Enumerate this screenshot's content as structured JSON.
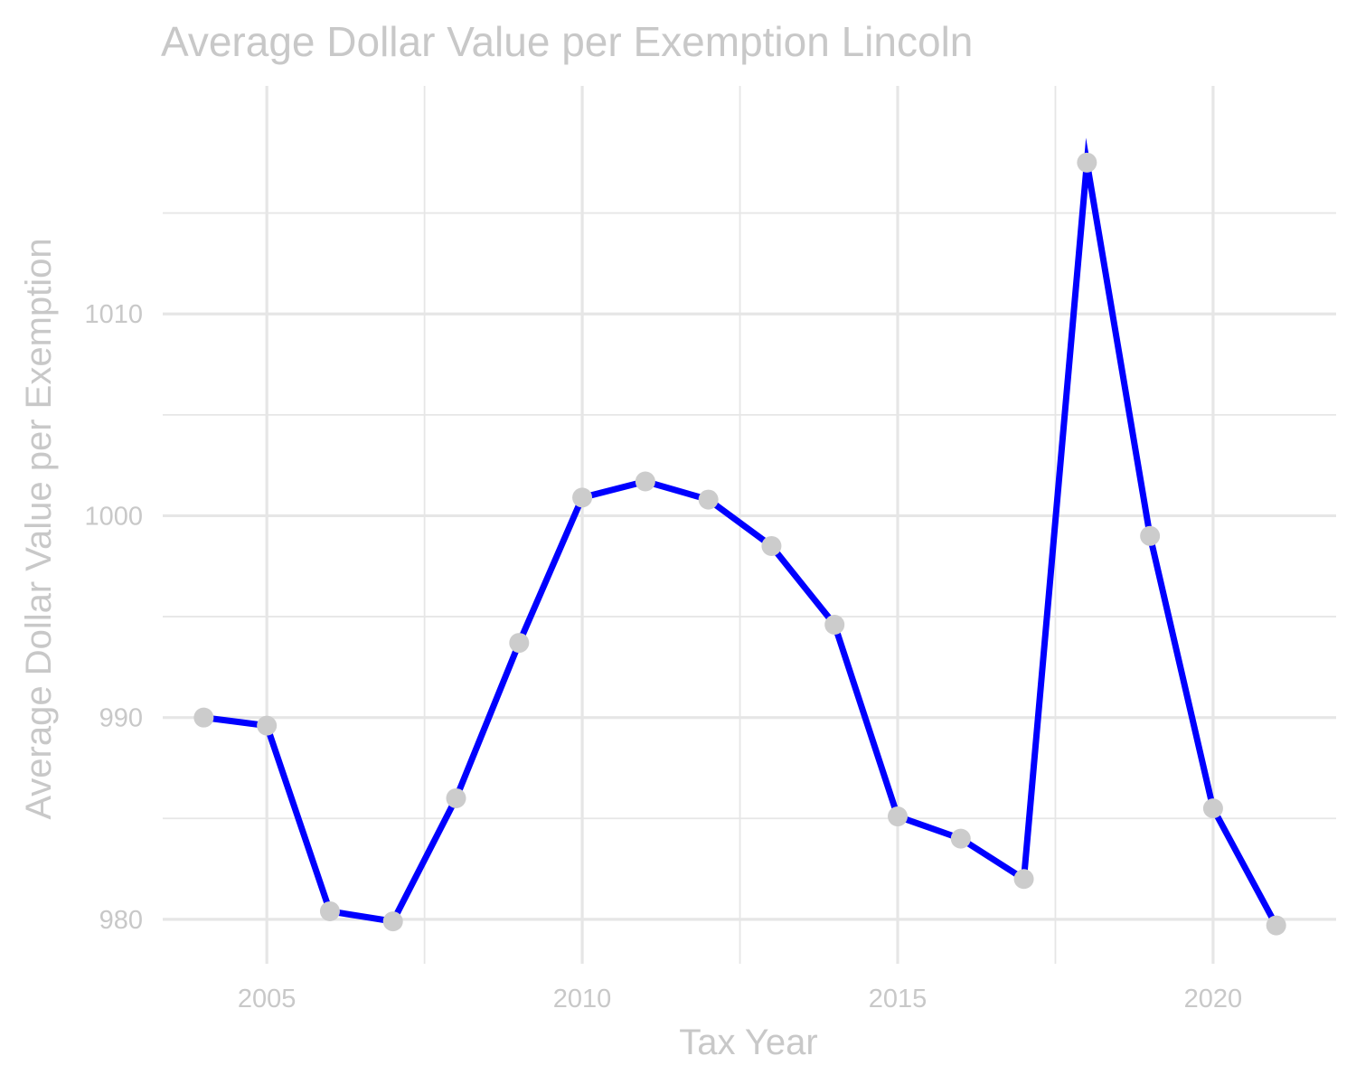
{
  "chart_data": {
    "type": "line",
    "title": "Average Dollar Value per Exemption Lincoln",
    "xlabel": "Tax Year",
    "ylabel": "Average Dollar Value per Exemption",
    "xlim": [
      2003.35,
      2021.95
    ],
    "ylim": [
      977.8,
      1021.3
    ],
    "x_ticks": [
      2005,
      2010,
      2015,
      2020
    ],
    "x_minor_ticks": [
      2007.5,
      2012.5,
      2017.5
    ],
    "y_ticks": [
      980,
      990,
      1000,
      1010
    ],
    "y_minor_ticks": [
      985,
      995,
      1005,
      1015
    ],
    "grid": true,
    "series": [
      {
        "x": [
          2004,
          2005,
          2006,
          2007,
          2008,
          2009,
          2010,
          2011,
          2012,
          2013,
          2014,
          2015,
          2016,
          2017,
          2018,
          2019,
          2020,
          2021
        ],
        "values": [
          990.0,
          989.6,
          980.4,
          979.9,
          986.0,
          993.7,
          1000.9,
          1001.7,
          1000.8,
          998.5,
          994.6,
          985.1,
          984.0,
          982.0,
          1017.5,
          999.0,
          985.5,
          979.7
        ]
      }
    ],
    "colors": {
      "line": "#0000ff",
      "point": "#cccccc",
      "grid": "#e6e6e6",
      "text": "#c8c8c8"
    }
  }
}
